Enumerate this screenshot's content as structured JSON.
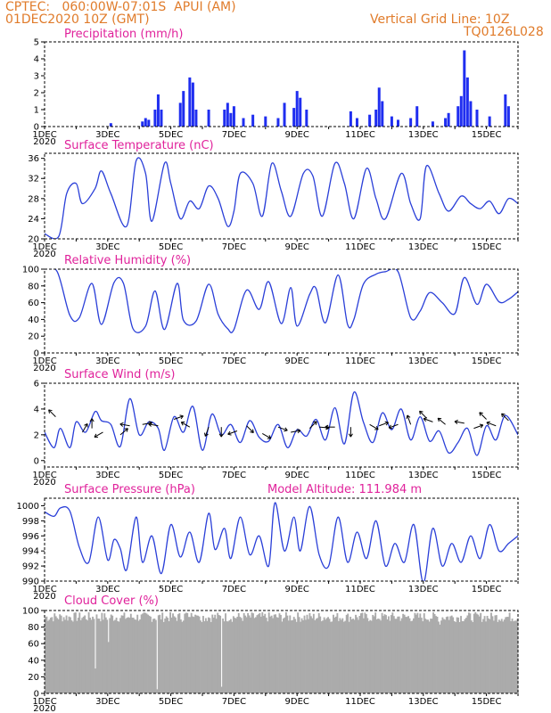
{
  "header": {
    "left_line1": "CPTEC:   060:00W-07:01S  APUI (AM)",
    "left_line2": "01DEC2020 10Z (GMT)",
    "right_line1": "Vertical Grid Line: 10Z",
    "right_line2": "TQ0126L028"
  },
  "x_axis": {
    "tick_labels": [
      "1DEC",
      "3DEC",
      "5DEC",
      "7DEC",
      "9DEC",
      "11DEC",
      "13DEC",
      "15DEC"
    ],
    "tick_days": [
      1,
      3,
      5,
      7,
      9,
      11,
      13,
      15
    ],
    "start_day": 1,
    "end_day": 16,
    "year_label": "2020"
  },
  "colors": {
    "line": "#2a3fd8",
    "bar": "#1f2ef0",
    "cloud": "#ababab",
    "header": "#e07b2a",
    "title": "#e0229b"
  },
  "chart_data": [
    {
      "type": "bar",
      "title": "Precipitation (mm/h)",
      "ylim": [
        0,
        5
      ],
      "yticks": [
        0,
        1,
        2,
        3,
        4,
        5
      ],
      "x": [
        3.1,
        4.1,
        4.2,
        4.3,
        4.5,
        4.6,
        4.7,
        5.3,
        5.4,
        5.6,
        5.7,
        5.8,
        6.2,
        6.7,
        6.8,
        6.9,
        7.0,
        7.3,
        7.6,
        8.0,
        8.4,
        8.6,
        8.9,
        9.0,
        9.1,
        9.3,
        10.7,
        10.9,
        11.3,
        11.5,
        11.6,
        11.7,
        12.0,
        12.2,
        12.6,
        12.8,
        13.3,
        13.7,
        13.8,
        14.1,
        14.2,
        14.3,
        14.4,
        14.5,
        14.7,
        15.1,
        15.6,
        15.7
      ],
      "values": [
        0.2,
        0.3,
        0.5,
        0.4,
        1.0,
        1.9,
        1.0,
        1.4,
        2.1,
        2.9,
        2.6,
        1.0,
        1.0,
        1.0,
        1.4,
        0.8,
        1.2,
        0.5,
        0.7,
        0.6,
        0.5,
        1.4,
        1.1,
        2.1,
        1.7,
        1.0,
        0.9,
        0.5,
        0.7,
        1.0,
        2.3,
        1.5,
        0.6,
        0.4,
        0.5,
        1.2,
        0.3,
        0.5,
        0.8,
        1.2,
        1.8,
        4.5,
        2.9,
        1.5,
        1.0,
        0.6,
        1.9,
        1.2
      ]
    },
    {
      "type": "line",
      "title": "Surface Temperature (nC)",
      "ylim": [
        20,
        37
      ],
      "yticks": [
        20,
        24,
        28,
        32,
        36
      ],
      "x": [
        1.0,
        1.45,
        1.7,
        2.0,
        2.2,
        2.6,
        2.8,
        3.1,
        3.6,
        3.9,
        4.2,
        4.4,
        4.8,
        5.0,
        5.3,
        5.6,
        5.9,
        6.2,
        6.5,
        6.8,
        7.0,
        7.2,
        7.6,
        7.9,
        8.2,
        8.5,
        8.8,
        9.2,
        9.5,
        9.8,
        10.2,
        10.5,
        10.8,
        11.2,
        11.5,
        11.8,
        12.3,
        12.6,
        12.9,
        13.1,
        13.5,
        13.8,
        14.2,
        14.5,
        14.8,
        15.1,
        15.4,
        15.7,
        16.0
      ],
      "values": [
        21,
        20.5,
        29,
        31,
        27,
        30,
        33.5,
        29,
        22.5,
        35.5,
        33,
        23.5,
        35,
        31,
        24,
        27.5,
        26,
        30.5,
        28,
        22.5,
        25.5,
        33,
        31,
        24.5,
        35,
        29.5,
        24.5,
        33,
        32.5,
        24.5,
        35,
        31,
        24,
        34,
        28,
        24,
        33,
        27,
        24,
        34.5,
        29,
        25.5,
        28.5,
        27,
        26,
        27.5,
        25,
        28,
        27
      ]
    },
    {
      "type": "line",
      "title": "Relative Humidity (%)",
      "ylim": [
        0,
        100
      ],
      "yticks": [
        0,
        20,
        40,
        60,
        80,
        100
      ],
      "x": [
        1.0,
        1.4,
        1.8,
        2.1,
        2.5,
        2.8,
        3.2,
        3.5,
        3.8,
        4.2,
        4.5,
        4.8,
        5.2,
        5.4,
        5.8,
        6.2,
        6.5,
        6.8,
        7.0,
        7.4,
        7.8,
        8.1,
        8.5,
        8.8,
        9.0,
        9.4,
        9.6,
        9.9,
        10.3,
        10.6,
        10.8,
        11.1,
        11.5,
        11.8,
        12.2,
        12.6,
        12.9,
        13.2,
        13.6,
        14.0,
        14.3,
        14.7,
        15.0,
        15.4,
        15.7,
        16.0
      ],
      "values": [
        100,
        97,
        45,
        42,
        83,
        34,
        84,
        83,
        29,
        32,
        74,
        28,
        83,
        39,
        38,
        82,
        46,
        29,
        28,
        75,
        52,
        85,
        35,
        78,
        32,
        70,
        77,
        36,
        93,
        34,
        40,
        82,
        94,
        97,
        97,
        42,
        50,
        72,
        60,
        47,
        90,
        58,
        82,
        61,
        64,
        73
      ]
    },
    {
      "type": "line",
      "title": "Surface Wind (m/s)",
      "ylim": [
        -0.5,
        6
      ],
      "yticks": [
        0,
        2,
        4,
        6
      ],
      "x": [
        1.0,
        1.3,
        1.5,
        1.8,
        2.0,
        2.3,
        2.6,
        2.8,
        3.1,
        3.4,
        3.7,
        4.0,
        4.3,
        4.6,
        4.8,
        5.1,
        5.4,
        5.7,
        6.0,
        6.3,
        6.6,
        6.9,
        7.2,
        7.5,
        7.8,
        8.1,
        8.4,
        8.7,
        9.0,
        9.3,
        9.6,
        9.9,
        10.2,
        10.5,
        10.8,
        11.1,
        11.4,
        11.7,
        12.0,
        12.3,
        12.6,
        12.9,
        13.2,
        13.5,
        13.8,
        14.1,
        14.4,
        14.7,
        15.0,
        15.3,
        15.6,
        16.0
      ],
      "values": [
        2.2,
        1.0,
        2.5,
        1.0,
        3.0,
        2.2,
        3.8,
        3.1,
        2.8,
        1.1,
        4.8,
        2.0,
        3.0,
        2.5,
        0.8,
        3.4,
        2.2,
        4.2,
        0.8,
        3.6,
        2.0,
        2.8,
        1.4,
        3.1,
        1.8,
        1.5,
        2.8,
        1.0,
        2.4,
        1.9,
        3.2,
        1.6,
        4.1,
        1.3,
        5.3,
        3.0,
        1.4,
        3.7,
        2.4,
        4.0,
        1.6,
        3.4,
        1.5,
        2.3,
        0.6,
        1.4,
        2.5,
        0.4,
        2.7,
        1.6,
        3.5,
        2.0
      ],
      "arrows": [
        {
          "x": 1.35,
          "y": 3.4,
          "dir": 135
        },
        {
          "x": 2.2,
          "y": 2.2,
          "dir": 60
        },
        {
          "x": 2.5,
          "y": 2.5,
          "dir": 90
        },
        {
          "x": 2.85,
          "y": 2.2,
          "dir": 210
        },
        {
          "x": 3.4,
          "y": 2.0,
          "dir": 40
        },
        {
          "x": 3.7,
          "y": 2.7,
          "dir": 170
        },
        {
          "x": 4.1,
          "y": 2.8,
          "dir": 10
        },
        {
          "x": 4.6,
          "y": 2.7,
          "dir": 170
        },
        {
          "x": 5.1,
          "y": 3.2,
          "dir": 20
        },
        {
          "x": 5.6,
          "y": 2.6,
          "dir": 150
        },
        {
          "x": 6.2,
          "y": 2.6,
          "dir": 250
        },
        {
          "x": 6.6,
          "y": 2.6,
          "dir": 270
        },
        {
          "x": 7.1,
          "y": 2.3,
          "dir": 200
        },
        {
          "x": 7.4,
          "y": 2.7,
          "dir": 315
        },
        {
          "x": 7.9,
          "y": 2.1,
          "dir": 330
        },
        {
          "x": 8.4,
          "y": 2.6,
          "dir": 340
        },
        {
          "x": 8.8,
          "y": 2.2,
          "dir": 10
        },
        {
          "x": 9.4,
          "y": 2.5,
          "dir": 45
        },
        {
          "x": 9.7,
          "y": 2.6,
          "dir": 355
        },
        {
          "x": 10.2,
          "y": 2.6,
          "dir": 180
        },
        {
          "x": 10.7,
          "y": 2.6,
          "dir": 270
        },
        {
          "x": 11.3,
          "y": 2.8,
          "dir": 330
        },
        {
          "x": 11.6,
          "y": 2.7,
          "dir": 20
        },
        {
          "x": 12.2,
          "y": 2.8,
          "dir": 200
        },
        {
          "x": 12.6,
          "y": 2.8,
          "dir": 110
        },
        {
          "x": 13.1,
          "y": 3.3,
          "dir": 135
        },
        {
          "x": 13.3,
          "y": 3.0,
          "dir": 160
        },
        {
          "x": 13.7,
          "y": 2.8,
          "dir": 140
        },
        {
          "x": 14.3,
          "y": 2.9,
          "dir": 170
        },
        {
          "x": 14.6,
          "y": 2.5,
          "dir": 20
        },
        {
          "x": 15.0,
          "y": 3.2,
          "dir": 135
        },
        {
          "x": 15.3,
          "y": 2.7,
          "dir": 160
        },
        {
          "x": 15.7,
          "y": 3.1,
          "dir": 135
        }
      ]
    },
    {
      "type": "line",
      "title": "Surface Pressure (hPa)",
      "annotation": "Model Altitude: 111.984 m",
      "ylim": [
        990,
        1001
      ],
      "yticks": [
        990,
        992,
        994,
        996,
        998,
        1000
      ],
      "x": [
        1.0,
        1.3,
        1.5,
        1.8,
        2.1,
        2.4,
        2.7,
        3.0,
        3.2,
        3.4,
        3.6,
        3.9,
        4.1,
        4.4,
        4.7,
        5.0,
        5.3,
        5.6,
        5.9,
        6.2,
        6.4,
        6.7,
        6.9,
        7.2,
        7.5,
        7.8,
        8.1,
        8.3,
        8.6,
        8.9,
        9.1,
        9.4,
        9.7,
        10.0,
        10.3,
        10.6,
        10.9,
        11.2,
        11.5,
        11.8,
        12.1,
        12.4,
        12.7,
        13.0,
        13.3,
        13.6,
        13.9,
        14.2,
        14.5,
        14.8,
        15.1,
        15.4,
        15.7,
        16.0
      ],
      "values": [
        999.2,
        998.6,
        999.7,
        999.3,
        994.5,
        992.5,
        998.5,
        992.8,
        995.5,
        994.3,
        991.5,
        998.5,
        992.5,
        996.0,
        991.0,
        997.5,
        993.2,
        996.5,
        992.5,
        999.0,
        994.2,
        997.0,
        993.0,
        998.5,
        993.5,
        996.0,
        992.0,
        1000.4,
        994.0,
        998.5,
        994.0,
        999.9,
        993.5,
        992.0,
        998.5,
        992.5,
        996.5,
        993.0,
        998.0,
        992.0,
        995.0,
        992.5,
        997.5,
        989.8,
        997.0,
        992.0,
        995.0,
        992.5,
        996.0,
        993.0,
        997.5,
        994.0,
        995.0,
        996.0
      ]
    },
    {
      "type": "bar",
      "title": "Cloud Cover (%)",
      "ylim": [
        0,
        100
      ],
      "yticks": [
        0,
        20,
        40,
        60,
        80,
        100
      ]
    }
  ]
}
